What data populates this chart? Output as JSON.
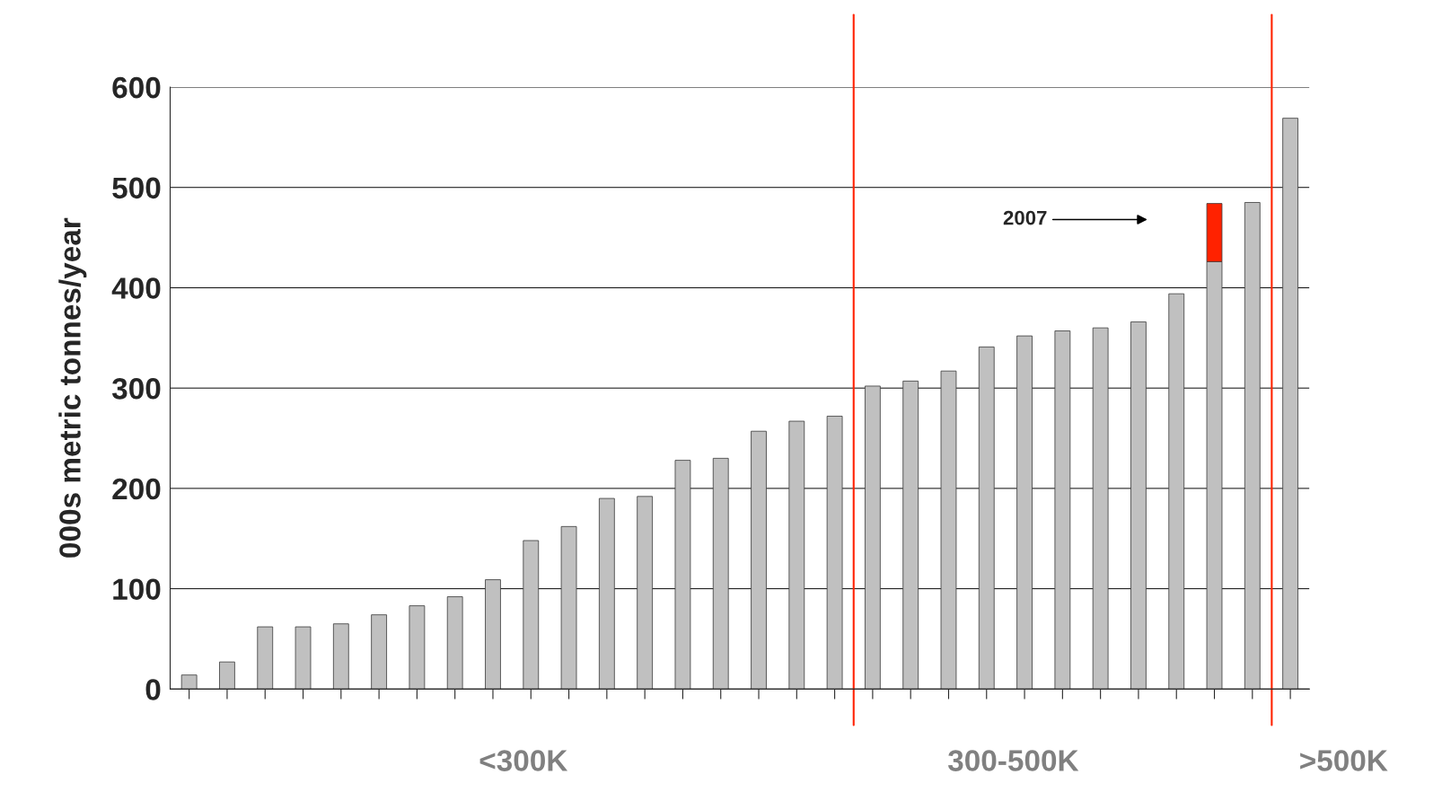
{
  "chart_data": {
    "type": "bar",
    "ylabel": "000s metric tonnes/year",
    "stacked": true,
    "categories": [
      null,
      null,
      null,
      null,
      null,
      null,
      null,
      null,
      null,
      null,
      null,
      null,
      null,
      null,
      null,
      null,
      null,
      null,
      null,
      null,
      null,
      null,
      null,
      null,
      null,
      null,
      null,
      null,
      null,
      null
    ],
    "series": [
      {
        "color": "#c0c0c0",
        "values": [
          14,
          27,
          62,
          62,
          65,
          74,
          83,
          92,
          109,
          148,
          162,
          190,
          192,
          228,
          230,
          257,
          267,
          272,
          302,
          307,
          317,
          341,
          352,
          357,
          360,
          366,
          394,
          426,
          485,
          569
        ]
      },
      {
        "color": "#ff2200",
        "values": [
          null,
          null,
          null,
          null,
          null,
          null,
          null,
          null,
          null,
          null,
          null,
          null,
          null,
          null,
          null,
          null,
          null,
          null,
          null,
          null,
          null,
          null,
          null,
          null,
          null,
          null,
          null,
          58,
          null,
          null
        ]
      }
    ],
    "ylim": [
      0,
      600
    ],
    "yticks": [
      0,
      100,
      200,
      300,
      400,
      500,
      600
    ],
    "grid": "y",
    "annotations": [
      "2007",
      "<300K",
      "300-500K",
      ">500K"
    ]
  }
}
